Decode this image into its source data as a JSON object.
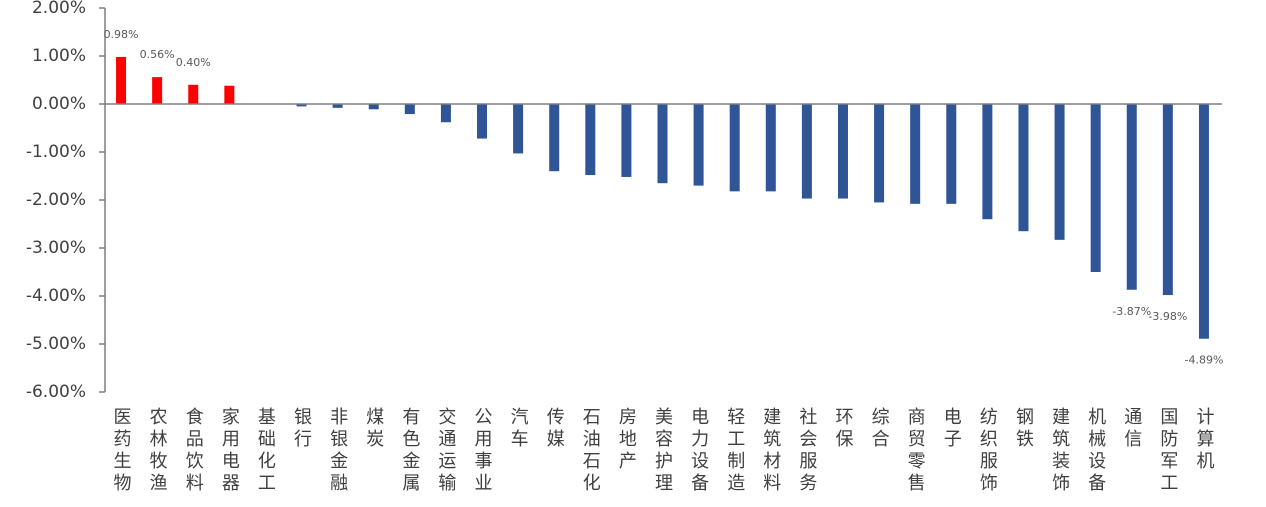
{
  "chart_data": {
    "type": "bar",
    "categories": [
      "医药生物",
      "农林牧渔",
      "食品饮料",
      "家用电器",
      "基础化工",
      "银行",
      "非银金融",
      "煤炭",
      "有色金属",
      "交通运输",
      "公用事业",
      "汽车",
      "传媒",
      "石油石化",
      "房地产",
      "美容护理",
      "电力设备",
      "轻工制造",
      "建筑材料",
      "社会服务",
      "环保",
      "综合",
      "商贸零售",
      "电子",
      "纺织服饰",
      "钢铁",
      "建筑装饰",
      "机械设备",
      "通信",
      "国防军工",
      "计算机"
    ],
    "values": [
      0.98,
      0.56,
      0.4,
      0.38,
      -0.01,
      -0.05,
      -0.08,
      -0.11,
      -0.21,
      -0.38,
      -0.72,
      -1.03,
      -1.4,
      -1.48,
      -1.52,
      -1.65,
      -1.7,
      -1.82,
      -1.82,
      -1.97,
      -1.97,
      -2.05,
      -2.08,
      -2.08,
      -2.4,
      -2.65,
      -2.83,
      -3.5,
      -3.87,
      -3.98,
      -4.89
    ],
    "value_labels": [
      "0.98%",
      "0.56%",
      "0.40%",
      null,
      null,
      null,
      null,
      null,
      null,
      null,
      null,
      null,
      null,
      null,
      null,
      null,
      null,
      null,
      null,
      null,
      null,
      null,
      null,
      null,
      null,
      null,
      null,
      null,
      "-3.87%",
      "-3.98%",
      "-4.89%"
    ],
    "color": "#2f5597",
    "positive_color": "#ff0000",
    "ylim": [
      -6,
      2
    ],
    "yticks": [
      {
        "value": 2,
        "label": "2.00%"
      },
      {
        "value": 1,
        "label": "1.00%"
      },
      {
        "value": 0,
        "label": "0.00%"
      },
      {
        "value": -1,
        "label": "-1.00%"
      },
      {
        "value": -2,
        "label": "-2.00%"
      },
      {
        "value": -3,
        "label": "-3.00%"
      },
      {
        "value": -4,
        "label": "-4.00%"
      },
      {
        "value": -5,
        "label": "-5.00%"
      },
      {
        "value": -6,
        "label": "-6.00%"
      }
    ],
    "grid": false
  }
}
